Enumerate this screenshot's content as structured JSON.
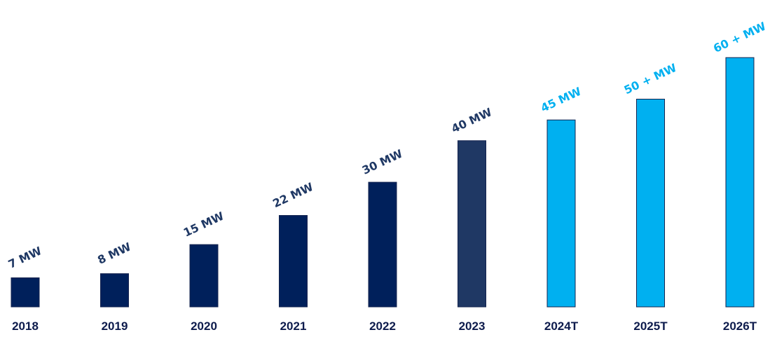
{
  "chart_data": {
    "type": "bar",
    "title": "",
    "xlabel": "",
    "ylabel": "",
    "ylim": [
      0,
      60
    ],
    "grid": false,
    "legend": "none",
    "categories": [
      "2018",
      "2019",
      "2020",
      "2021",
      "2022",
      "2023",
      "2024T",
      "2025T",
      "2026T"
    ],
    "values": [
      7,
      8,
      15,
      22,
      30,
      40,
      45,
      50,
      60
    ],
    "data_labels": [
      "7 MW",
      "8 MW",
      "15 MW",
      "22 MW",
      "30 MW",
      "40 MW",
      "45 MW",
      "50 + MW",
      "60 + MW"
    ],
    "bar_colors": [
      "#00205b",
      "#00205b",
      "#00205b",
      "#00205b",
      "#00205b",
      "#1f3864",
      "#00b0f0",
      "#00b0f0",
      "#00b0f0"
    ],
    "label_colors": [
      "#1f3864",
      "#1f3864",
      "#1f3864",
      "#1f3864",
      "#1f3864",
      "#1f3864",
      "#00b0f0",
      "#00b0f0",
      "#00b0f0"
    ],
    "tick_color": "#0d1b4c"
  }
}
